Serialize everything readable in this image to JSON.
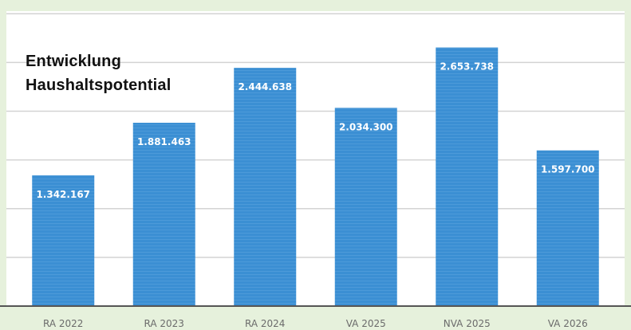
{
  "chart_data": {
    "type": "bar",
    "title_lines": [
      "Entwicklung",
      "Haushaltspotential"
    ],
    "categories": [
      "RA 2022",
      "RA 2023",
      "RA 2024",
      "VA 2025",
      "NVA 2025",
      "VA 2026"
    ],
    "values": [
      1342167,
      1881463,
      2444638,
      2034300,
      2653738,
      1597700
    ],
    "data_labels": [
      "1.342.167",
      "1.881.463",
      "2.444.638",
      "2.034.300",
      "2.653.738",
      "1.597.700"
    ],
    "ylim": [
      0,
      3000000
    ],
    "grid": true,
    "legend": "none"
  },
  "colors": {
    "bar": "#3b8fd3",
    "bar_stripe": "#5aa3de",
    "plot_bg": "#ffffff",
    "page_bg": "#e6f1dc",
    "grid": "#d3d3d3",
    "axis": "#555555",
    "data_label": "#ffffff",
    "tick_label": "#6b6b6b"
  }
}
